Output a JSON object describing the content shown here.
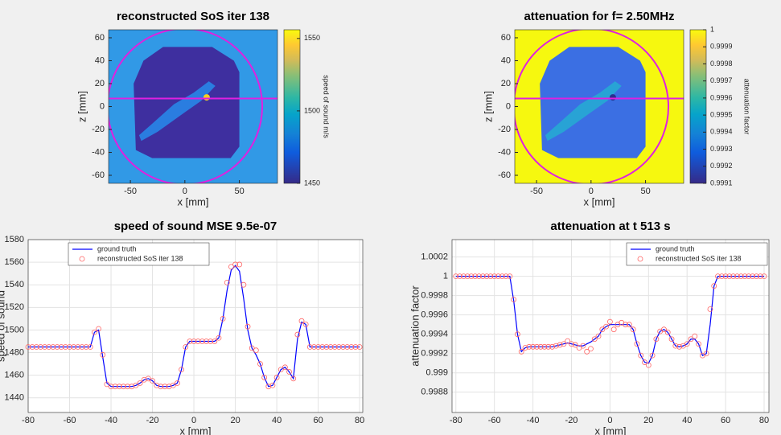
{
  "chart_data": [
    {
      "type": "heatmap",
      "title": "reconstructed SoS iter 138",
      "xlabel": "x [mm]",
      "ylabel": "z [mm]",
      "xlim": [
        -70,
        85
      ],
      "ylim": [
        -67,
        67
      ],
      "xticks": [
        -50,
        0,
        50
      ],
      "yticks": [
        -60,
        -40,
        -20,
        0,
        20,
        40,
        60
      ],
      "colorbar": {
        "label": "speed of sound m/s",
        "lim": [
          1450,
          1556
        ],
        "ticks": [
          1450,
          1500,
          1550
        ]
      }
    },
    {
      "type": "heatmap",
      "title": "attenuation for f= 2.50MHz",
      "xlabel": "x [mm]",
      "ylabel": "z [mm]",
      "xlim": [
        -70,
        85
      ],
      "ylim": [
        -67,
        67
      ],
      "xticks": [
        -50,
        0,
        50
      ],
      "yticks": [
        -60,
        -40,
        -20,
        0,
        20,
        40,
        60
      ],
      "colorbar": {
        "label": "attenuation factor",
        "lim": [
          0.9991,
          1
        ],
        "ticks": [
          0.9991,
          0.9992,
          0.9993,
          0.9994,
          0.9995,
          0.9996,
          0.9997,
          0.9998,
          0.9999,
          1
        ]
      }
    },
    {
      "type": "line",
      "title": "speed of sound MSE 9.5e-07",
      "xlabel": "x [mm]",
      "ylabel": "speed of sound",
      "xlim": [
        -80,
        81.5
      ],
      "ylim": [
        1427,
        1580
      ],
      "xticks": [
        -80,
        -60,
        -40,
        -20,
        0,
        20,
        40,
        60,
        80
      ],
      "yticks": [
        1440,
        1460,
        1480,
        1500,
        1520,
        1540,
        1560,
        1580
      ],
      "grid": true,
      "legend": "upper left",
      "x": [
        -80,
        -78,
        -76,
        -74,
        -72,
        -70,
        -68,
        -66,
        -64,
        -62,
        -60,
        -58,
        -56,
        -54,
        -52,
        -50,
        -48,
        -46,
        -44,
        -42,
        -40,
        -38,
        -36,
        -34,
        -32,
        -30,
        -28,
        -26,
        -24,
        -22,
        -20,
        -18,
        -16,
        -14,
        -12,
        -10,
        -8,
        -6,
        -4,
        -2,
        0,
        2,
        4,
        6,
        8,
        10,
        12,
        14,
        16,
        18,
        20,
        22,
        24,
        26,
        28,
        30,
        32,
        34,
        36,
        38,
        40,
        42,
        44,
        46,
        48,
        50,
        52,
        54,
        56,
        58,
        60,
        62,
        64,
        66,
        68,
        70,
        72,
        74,
        76,
        78,
        80
      ],
      "series": [
        {
          "name": "ground truth",
          "color": "#0000ff",
          "style": "line",
          "values": [
            1485,
            1485,
            1485,
            1485,
            1485,
            1485,
            1485,
            1485,
            1485,
            1485,
            1485,
            1485,
            1485,
            1485,
            1485,
            1485,
            1498,
            1500,
            1476,
            1453,
            1450,
            1450,
            1450,
            1450,
            1450,
            1450,
            1451,
            1453,
            1456,
            1457,
            1455,
            1451,
            1450,
            1450,
            1450,
            1451,
            1453,
            1465,
            1485,
            1490,
            1490,
            1490,
            1490,
            1490,
            1490,
            1490,
            1493,
            1510,
            1535,
            1553,
            1557,
            1552,
            1528,
            1500,
            1484,
            1478,
            1470,
            1458,
            1450,
            1451,
            1458,
            1465,
            1467,
            1463,
            1457,
            1492,
            1507,
            1505,
            1485,
            1485,
            1485,
            1485,
            1485,
            1485,
            1485,
            1485,
            1485,
            1485,
            1485,
            1485,
            1485
          ]
        },
        {
          "name": "reconstructed SoS iter 138",
          "color": "#ff6666",
          "style": "marker",
          "values": [
            1485,
            1485,
            1485,
            1485,
            1485,
            1485,
            1485,
            1485,
            1485,
            1485,
            1485,
            1485,
            1485,
            1485,
            1485,
            1485,
            1498,
            1501,
            1478,
            1452,
            1450,
            1450,
            1450,
            1450,
            1450,
            1450,
            1451,
            1453,
            1456,
            1457,
            1455,
            1451,
            1450,
            1450,
            1450,
            1451,
            1453,
            1465,
            1485,
            1490,
            1490,
            1490,
            1490,
            1490,
            1490,
            1490,
            1493,
            1510,
            1542,
            1556,
            1558,
            1558,
            1540,
            1503,
            1484,
            1482,
            1470,
            1458,
            1450,
            1451,
            1458,
            1465,
            1467,
            1463,
            1457,
            1496,
            1508,
            1505,
            1485,
            1485,
            1485,
            1485,
            1485,
            1485,
            1485,
            1485,
            1485,
            1485,
            1485,
            1485,
            1485
          ]
        }
      ]
    },
    {
      "type": "line",
      "title": "attenuation at t   513 s",
      "xlabel": "x [mm]",
      "ylabel": "attenuation factor",
      "xlim": [
        -82,
        82.5
      ],
      "ylim": [
        0.99859,
        1.00038
      ],
      "xticks": [
        -80,
        -60,
        -40,
        -20,
        0,
        20,
        40,
        60,
        80
      ],
      "yticks": [
        0.9988,
        0.999,
        0.9992,
        0.9994,
        0.9996,
        0.9998,
        1,
        1.0002
      ],
      "grid": true,
      "legend": "upper right",
      "x": [
        -80,
        -78,
        -76,
        -74,
        -72,
        -70,
        -68,
        -66,
        -64,
        -62,
        -60,
        -58,
        -56,
        -54,
        -52,
        -50,
        -48,
        -46,
        -44,
        -42,
        -40,
        -38,
        -36,
        -34,
        -32,
        -30,
        -28,
        -26,
        -24,
        -22,
        -20,
        -18,
        -16,
        -14,
        -12,
        -10,
        -8,
        -6,
        -4,
        -2,
        0,
        2,
        4,
        6,
        8,
        10,
        12,
        14,
        16,
        18,
        20,
        22,
        24,
        26,
        28,
        30,
        32,
        34,
        36,
        38,
        40,
        42,
        44,
        46,
        48,
        50,
        52,
        54,
        56,
        58,
        60,
        62,
        64,
        66,
        68,
        70,
        72,
        74,
        76,
        78,
        80
      ],
      "series": [
        {
          "name": "ground truth",
          "color": "#0000ff",
          "style": "line",
          "values": [
            1,
            1,
            1,
            1,
            1,
            1,
            1,
            1,
            1,
            1,
            1,
            1,
            1,
            1,
            1,
            0.99975,
            0.9994,
            0.99922,
            0.99926,
            0.99927,
            0.99927,
            0.99927,
            0.99927,
            0.99927,
            0.99927,
            0.99927,
            0.99928,
            0.99929,
            0.9993,
            0.99931,
            0.9993,
            0.99929,
            0.99928,
            0.99928,
            0.9993,
            0.99932,
            0.99935,
            0.99938,
            0.99945,
            0.99948,
            0.9995,
            0.9995,
            0.9995,
            0.9995,
            0.9995,
            0.9995,
            0.99945,
            0.9993,
            0.99918,
            0.99911,
            0.9991,
            0.99918,
            0.99935,
            0.99943,
            0.99945,
            0.99942,
            0.99935,
            0.99928,
            0.99927,
            0.99928,
            0.9993,
            0.99935,
            0.99935,
            0.9993,
            0.99918,
            0.9992,
            0.9995,
            0.9999,
            1,
            1,
            1,
            1,
            1,
            1,
            1,
            1,
            1,
            1,
            1,
            1,
            1
          ]
        },
        {
          "name": "reconstructed SoS iter 138",
          "color": "#ff6666",
          "style": "marker",
          "values": [
            1,
            1,
            1,
            1,
            1,
            1,
            1,
            1,
            1,
            1,
            1,
            1,
            1,
            1,
            1,
            0.99976,
            0.9994,
            0.99922,
            0.99926,
            0.99927,
            0.99927,
            0.99927,
            0.99927,
            0.99927,
            0.99927,
            0.99927,
            0.99928,
            0.99929,
            0.9993,
            0.99933,
            0.9993,
            0.99929,
            0.99926,
            0.99928,
            0.99922,
            0.99925,
            0.99935,
            0.99938,
            0.99945,
            0.99948,
            0.99953,
            0.99945,
            0.9995,
            0.99952,
            0.9995,
            0.9995,
            0.99945,
            0.9993,
            0.99918,
            0.99911,
            0.99908,
            0.99918,
            0.99935,
            0.99943,
            0.99945,
            0.99942,
            0.99935,
            0.99928,
            0.99927,
            0.99928,
            0.9993,
            0.99935,
            0.99938,
            0.9993,
            0.99918,
            0.9992,
            0.99966,
            0.9999,
            1,
            1,
            1,
            1,
            1,
            1,
            1,
            1,
            1,
            1,
            1,
            1,
            1
          ]
        }
      ]
    }
  ]
}
